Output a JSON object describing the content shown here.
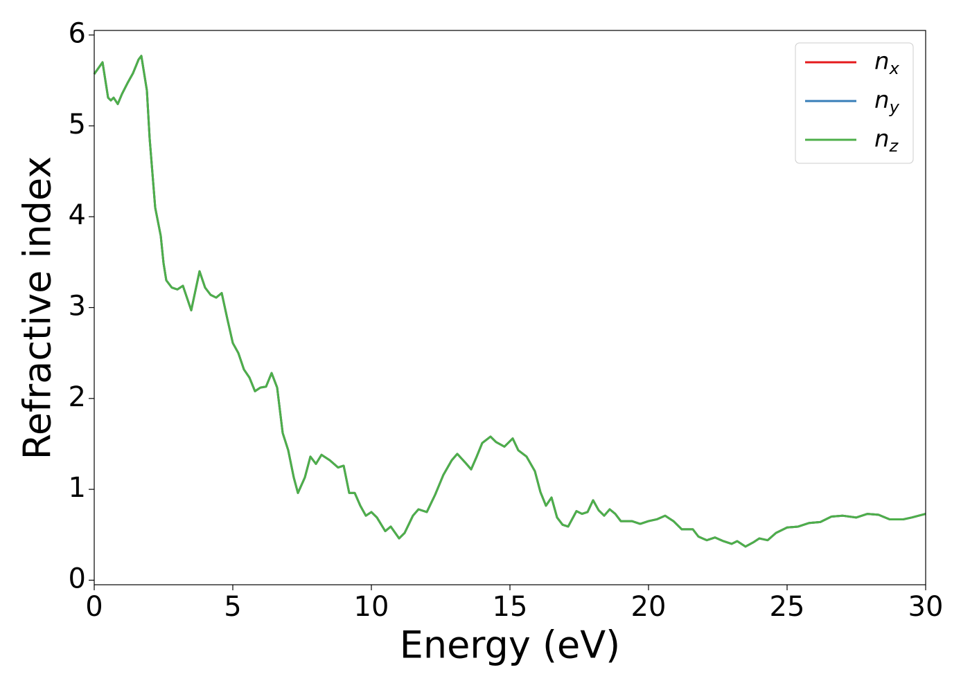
{
  "chart_data": {
    "type": "line",
    "xlabel": "Energy (eV)",
    "ylabel": "Refractive index",
    "x": [
      0,
      0.3,
      0.5,
      0.6,
      0.7,
      0.85,
      1.0,
      1.2,
      1.4,
      1.6,
      1.7,
      1.9,
      2.0,
      2.2,
      2.4,
      2.5,
      2.6,
      2.8,
      3.0,
      3.2,
      3.5,
      3.8,
      4.0,
      4.2,
      4.4,
      4.6,
      4.8,
      5.0,
      5.2,
      5.4,
      5.6,
      5.8,
      6.0,
      6.2,
      6.4,
      6.6,
      6.8,
      7.0,
      7.2,
      7.35,
      7.6,
      7.8,
      8.0,
      8.2,
      8.5,
      8.8,
      9.0,
      9.2,
      9.4,
      9.6,
      9.8,
      10.0,
      10.2,
      10.5,
      10.7,
      11.0,
      11.2,
      11.5,
      11.7,
      12.0,
      12.3,
      12.6,
      12.9,
      13.1,
      13.4,
      13.6,
      13.8,
      14.0,
      14.3,
      14.5,
      14.8,
      15.0,
      15.1,
      15.3,
      15.6,
      15.9,
      16.1,
      16.3,
      16.5,
      16.7,
      16.9,
      17.1,
      17.4,
      17.6,
      17.8,
      18.0,
      18.2,
      18.4,
      18.6,
      18.8,
      19.0,
      19.4,
      19.7,
      20.0,
      20.3,
      20.6,
      20.9,
      21.2,
      21.6,
      21.8,
      22.1,
      22.4,
      22.7,
      23.0,
      23.2,
      23.5,
      23.8,
      24.0,
      24.3,
      24.6,
      25.0,
      25.4,
      25.8,
      26.2,
      26.6,
      27.0,
      27.5,
      27.9,
      28.3,
      28.7,
      29.2,
      29.5,
      30.0
    ],
    "series": [
      {
        "name": "n_x",
        "color": "#e41a1c",
        "values": [
          5.57,
          5.7,
          5.31,
          5.28,
          5.31,
          5.24,
          5.35,
          5.47,
          5.58,
          5.73,
          5.77,
          5.39,
          4.86,
          4.1,
          3.79,
          3.49,
          3.3,
          3.22,
          3.2,
          3.24,
          2.97,
          3.4,
          3.22,
          3.14,
          3.11,
          3.16,
          2.88,
          2.61,
          2.5,
          2.32,
          2.23,
          2.08,
          2.12,
          2.13,
          2.28,
          2.12,
          1.62,
          1.43,
          1.13,
          0.96,
          1.13,
          1.36,
          1.28,
          1.38,
          1.32,
          1.24,
          1.26,
          0.96,
          0.96,
          0.82,
          0.71,
          0.75,
          0.69,
          0.54,
          0.59,
          0.46,
          0.52,
          0.71,
          0.78,
          0.75,
          0.94,
          1.16,
          1.32,
          1.39,
          1.29,
          1.22,
          1.36,
          1.51,
          1.58,
          1.52,
          1.47,
          1.53,
          1.56,
          1.43,
          1.36,
          1.2,
          0.97,
          0.82,
          0.91,
          0.69,
          0.61,
          0.59,
          0.76,
          0.73,
          0.75,
          0.88,
          0.77,
          0.71,
          0.78,
          0.73,
          0.65,
          0.65,
          0.62,
          0.65,
          0.67,
          0.71,
          0.65,
          0.56,
          0.56,
          0.48,
          0.44,
          0.47,
          0.43,
          0.4,
          0.43,
          0.37,
          0.42,
          0.46,
          0.44,
          0.52,
          0.58,
          0.59,
          0.63,
          0.64,
          0.7,
          0.71,
          0.69,
          0.73,
          0.72,
          0.67,
          0.67,
          0.69,
          0.73
        ]
      },
      {
        "name": "n_y",
        "color": "#377eb8",
        "values": [
          5.57,
          5.7,
          5.31,
          5.28,
          5.31,
          5.24,
          5.35,
          5.47,
          5.58,
          5.73,
          5.77,
          5.39,
          4.86,
          4.1,
          3.79,
          3.49,
          3.3,
          3.22,
          3.2,
          3.24,
          2.97,
          3.4,
          3.22,
          3.14,
          3.11,
          3.16,
          2.88,
          2.61,
          2.5,
          2.32,
          2.23,
          2.08,
          2.12,
          2.13,
          2.28,
          2.12,
          1.62,
          1.43,
          1.13,
          0.96,
          1.13,
          1.36,
          1.28,
          1.38,
          1.32,
          1.24,
          1.26,
          0.96,
          0.96,
          0.82,
          0.71,
          0.75,
          0.69,
          0.54,
          0.59,
          0.46,
          0.52,
          0.71,
          0.78,
          0.75,
          0.94,
          1.16,
          1.32,
          1.39,
          1.29,
          1.22,
          1.36,
          1.51,
          1.58,
          1.52,
          1.47,
          1.53,
          1.56,
          1.43,
          1.36,
          1.2,
          0.97,
          0.82,
          0.91,
          0.69,
          0.61,
          0.59,
          0.76,
          0.73,
          0.75,
          0.88,
          0.77,
          0.71,
          0.78,
          0.73,
          0.65,
          0.65,
          0.62,
          0.65,
          0.67,
          0.71,
          0.65,
          0.56,
          0.56,
          0.48,
          0.44,
          0.47,
          0.43,
          0.4,
          0.43,
          0.37,
          0.42,
          0.46,
          0.44,
          0.52,
          0.58,
          0.59,
          0.63,
          0.64,
          0.7,
          0.71,
          0.69,
          0.73,
          0.72,
          0.67,
          0.67,
          0.69,
          0.73
        ]
      },
      {
        "name": "n_z",
        "color": "#4daf4a",
        "values": [
          5.57,
          5.7,
          5.31,
          5.28,
          5.31,
          5.24,
          5.35,
          5.47,
          5.58,
          5.73,
          5.77,
          5.39,
          4.86,
          4.1,
          3.79,
          3.49,
          3.3,
          3.22,
          3.2,
          3.24,
          2.97,
          3.4,
          3.22,
          3.14,
          3.11,
          3.16,
          2.88,
          2.61,
          2.5,
          2.32,
          2.23,
          2.08,
          2.12,
          2.13,
          2.28,
          2.12,
          1.62,
          1.43,
          1.13,
          0.96,
          1.13,
          1.36,
          1.28,
          1.38,
          1.32,
          1.24,
          1.26,
          0.96,
          0.96,
          0.82,
          0.71,
          0.75,
          0.69,
          0.54,
          0.59,
          0.46,
          0.52,
          0.71,
          0.78,
          0.75,
          0.94,
          1.16,
          1.32,
          1.39,
          1.29,
          1.22,
          1.36,
          1.51,
          1.58,
          1.52,
          1.47,
          1.53,
          1.56,
          1.43,
          1.36,
          1.2,
          0.97,
          0.82,
          0.91,
          0.69,
          0.61,
          0.59,
          0.76,
          0.73,
          0.75,
          0.88,
          0.77,
          0.71,
          0.78,
          0.73,
          0.65,
          0.65,
          0.62,
          0.65,
          0.67,
          0.71,
          0.65,
          0.56,
          0.56,
          0.48,
          0.44,
          0.47,
          0.43,
          0.4,
          0.43,
          0.37,
          0.42,
          0.46,
          0.44,
          0.52,
          0.58,
          0.59,
          0.63,
          0.64,
          0.7,
          0.71,
          0.69,
          0.73,
          0.72,
          0.67,
          0.67,
          0.69,
          0.73
        ]
      }
    ],
    "xlim": [
      0,
      30
    ],
    "xticks": [
      0,
      5,
      10,
      15,
      20,
      25,
      30
    ],
    "ylim": [
      -0.05,
      6.05
    ],
    "yticks": [
      0,
      1,
      2,
      3,
      4,
      5,
      6
    ],
    "legend": "upper right"
  }
}
